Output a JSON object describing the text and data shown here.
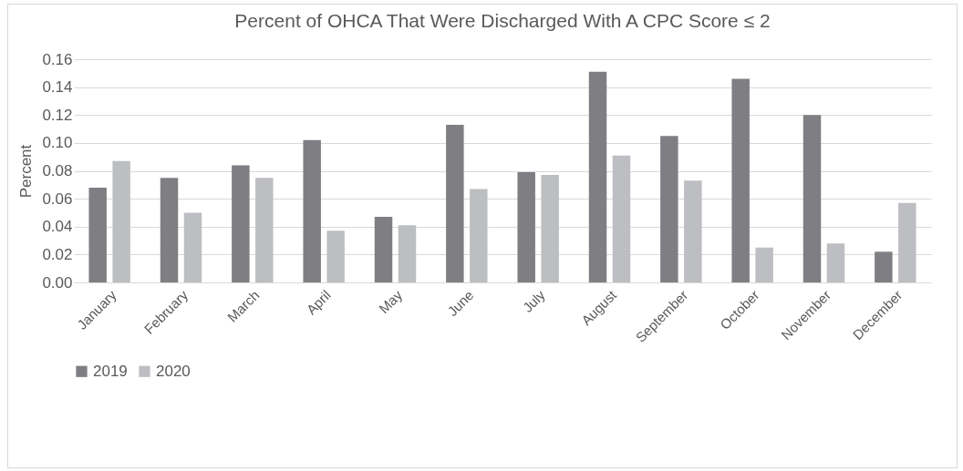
{
  "chart_data": {
    "type": "bar",
    "title": "Percent of OHCA That Were Discharged With A  CPC Score ≤ 2",
    "ylabel": "Percent",
    "categories": [
      "January",
      "February",
      "March",
      "April",
      "May",
      "June",
      "July",
      "August",
      "September",
      "October",
      "November",
      "December"
    ],
    "series": [
      {
        "name": "2019",
        "color": "#7f7f83",
        "values": [
          0.068,
          0.075,
          0.084,
          0.102,
          0.047,
          0.113,
          0.079,
          0.151,
          0.105,
          0.146,
          0.12,
          0.022
        ]
      },
      {
        "name": "2020",
        "color": "#bdbec1",
        "values": [
          0.087,
          0.05,
          0.075,
          0.037,
          0.041,
          0.067,
          0.077,
          0.091,
          0.073,
          0.025,
          0.028,
          0.057
        ]
      }
    ],
    "ylim": [
      0,
      0.16
    ],
    "yticks": [
      {
        "value": 0,
        "label": "0.00"
      },
      {
        "value": 0.02,
        "label": "0.02"
      },
      {
        "value": 0.04,
        "label": "0.04"
      },
      {
        "value": 0.06,
        "label": "0.06"
      },
      {
        "value": 0.08,
        "label": "0.08"
      },
      {
        "value": 0.1,
        "label": "0.10"
      },
      {
        "value": 0.12,
        "label": "0.12"
      },
      {
        "value": 0.14,
        "label": "0.14"
      },
      {
        "value": 0.16,
        "label": "0.16"
      }
    ],
    "grid": "y",
    "legend": "bottom"
  }
}
